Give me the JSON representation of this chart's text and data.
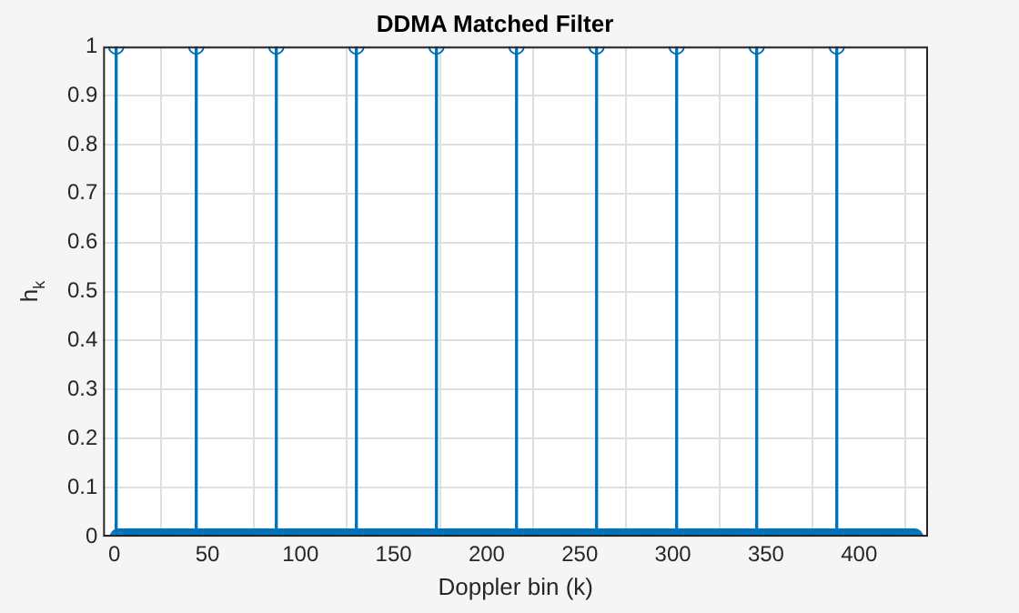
{
  "chart_data": {
    "type": "lollipop",
    "title": "DDMA Matched Filter",
    "xlabel": "Doppler bin (k)",
    "ylabel": "h$_{k}$",
    "x": [
      1,
      2,
      3,
      4,
      5,
      6,
      7,
      8,
      9,
      10,
      11,
      12,
      13,
      14,
      15,
      16,
      17,
      18,
      19,
      20,
      21,
      22,
      23,
      24,
      25,
      26,
      27,
      28,
      29,
      30,
      31,
      32,
      33,
      34,
      35,
      36,
      37,
      38,
      39,
      40,
      41,
      42,
      43,
      44,
      45,
      46,
      47,
      48,
      49,
      50,
      51,
      52,
      53,
      54,
      55,
      56,
      57,
      58,
      59,
      60,
      61,
      62,
      63,
      64,
      65,
      66,
      67,
      68,
      69,
      70,
      71,
      72,
      73,
      74,
      75,
      76,
      77,
      78,
      79,
      80,
      81,
      82,
      83,
      84,
      85,
      86,
      87,
      88,
      89,
      90,
      91,
      92,
      93,
      94,
      95,
      96,
      97,
      98,
      99,
      100,
      101,
      102,
      103,
      104,
      105,
      106,
      107,
      108,
      109,
      110,
      111,
      112,
      113,
      114,
      115,
      116,
      117,
      118,
      119,
      120,
      121,
      122,
      123,
      124,
      125,
      126,
      127,
      128,
      129,
      130,
      131,
      132,
      133,
      134,
      135,
      136,
      137,
      138,
      139,
      140,
      141,
      142,
      143,
      144,
      145,
      146,
      147,
      148,
      149,
      150,
      151,
      152,
      153,
      154,
      155,
      156,
      157,
      158,
      159,
      160,
      161,
      162,
      163,
      164,
      165,
      166,
      167,
      168,
      169,
      170,
      171,
      172,
      173,
      174,
      175,
      176,
      177,
      178,
      179,
      180,
      181,
      182,
      183,
      184,
      185,
      186,
      187,
      188,
      189,
      190,
      191,
      192,
      193,
      194,
      195,
      196,
      197,
      198,
      199,
      200,
      201,
      202,
      203,
      204,
      205,
      206,
      207,
      208,
      209,
      210,
      211,
      212,
      213,
      214,
      215,
      216,
      217,
      218,
      219,
      220,
      221,
      222,
      223,
      224,
      225,
      226,
      227,
      228,
      229,
      230,
      231,
      232,
      233,
      234,
      235,
      236,
      237,
      238,
      239,
      240,
      241,
      242,
      243,
      244,
      245,
      246,
      247,
      248,
      249,
      250,
      251,
      252,
      253,
      254,
      255,
      256,
      257,
      258,
      259,
      260,
      261,
      262,
      263,
      264,
      265,
      266,
      267,
      268,
      269,
      270,
      271,
      272,
      273,
      274,
      275,
      276,
      277,
      278,
      279,
      280,
      281,
      282,
      283,
      284,
      285,
      286,
      287,
      288,
      289,
      290,
      291,
      292,
      293,
      294,
      295,
      296,
      297,
      298,
      299,
      300,
      301,
      302,
      303,
      304,
      305,
      306,
      307,
      308,
      309,
      310,
      311,
      312,
      313,
      314,
      315,
      316,
      317,
      318,
      319,
      320,
      321,
      322,
      323,
      324,
      325,
      326,
      327,
      328,
      329,
      330,
      331,
      332,
      333,
      334,
      335,
      336,
      337,
      338,
      339,
      340,
      341,
      342,
      343,
      344,
      345,
      346,
      347,
      348,
      349,
      350,
      351,
      352,
      353,
      354,
      355,
      356,
      357,
      358,
      359,
      360,
      361,
      362,
      363,
      364,
      365,
      366,
      367,
      368,
      369,
      370,
      371,
      372,
      373,
      374,
      375,
      376,
      377,
      378,
      379,
      380,
      381,
      382,
      383,
      384,
      385,
      386,
      387,
      388,
      389,
      390,
      391,
      392,
      393,
      394,
      395,
      396,
      397,
      398,
      399,
      400,
      401,
      402,
      403,
      404,
      405,
      406,
      407,
      408,
      409,
      410,
      411,
      412,
      413,
      414,
      415,
      416,
      417,
      418,
      419,
      420,
      421,
      422,
      423,
      424,
      425,
      426,
      427,
      428,
      429,
      430
    ],
    "series": [
      {
        "color": "#0072bd",
        "values": [
          1,
          0,
          0,
          0,
          0,
          0,
          0,
          0,
          0,
          0,
          0,
          0,
          0,
          0,
          0,
          0,
          0,
          0,
          0,
          0,
          0,
          0,
          0,
          0,
          0,
          0,
          0,
          0,
          0,
          0,
          0,
          0,
          0,
          0,
          0,
          0,
          0,
          0,
          0,
          0,
          0,
          0,
          0,
          1,
          0,
          0,
          0,
          0,
          0,
          0,
          0,
          0,
          0,
          0,
          0,
          0,
          0,
          0,
          0,
          0,
          0,
          0,
          0,
          0,
          0,
          0,
          0,
          0,
          0,
          0,
          0,
          0,
          0,
          0,
          0,
          0,
          0,
          0,
          0,
          0,
          0,
          0,
          0,
          0,
          0,
          0,
          1,
          0,
          0,
          0,
          0,
          0,
          0,
          0,
          0,
          0,
          0,
          0,
          0,
          0,
          0,
          0,
          0,
          0,
          0,
          0,
          0,
          0,
          0,
          0,
          0,
          0,
          0,
          0,
          0,
          0,
          0,
          0,
          0,
          0,
          0,
          0,
          0,
          0,
          0,
          0,
          0,
          0,
          0,
          1,
          0,
          0,
          0,
          0,
          0,
          0,
          0,
          0,
          0,
          0,
          0,
          0,
          0,
          0,
          0,
          0,
          0,
          0,
          0,
          0,
          0,
          0,
          0,
          0,
          0,
          0,
          0,
          0,
          0,
          0,
          0,
          0,
          0,
          0,
          0,
          0,
          0,
          0,
          0,
          0,
          0,
          0,
          1,
          0,
          0,
          0,
          0,
          0,
          0,
          0,
          0,
          0,
          0,
          0,
          0,
          0,
          0,
          0,
          0,
          0,
          0,
          0,
          0,
          0,
          0,
          0,
          0,
          0,
          0,
          0,
          0,
          0,
          0,
          0,
          0,
          0,
          0,
          0,
          0,
          0,
          0,
          0,
          0,
          0,
          0,
          1,
          0,
          0,
          0,
          0,
          0,
          0,
          0,
          0,
          0,
          0,
          0,
          0,
          0,
          0,
          0,
          0,
          0,
          0,
          0,
          0,
          0,
          0,
          0,
          0,
          0,
          0,
          0,
          0,
          0,
          0,
          0,
          0,
          0,
          0,
          0,
          0,
          0,
          0,
          0,
          0,
          0,
          0,
          1,
          0,
          0,
          0,
          0,
          0,
          0,
          0,
          0,
          0,
          0,
          0,
          0,
          0,
          0,
          0,
          0,
          0,
          0,
          0,
          0,
          0,
          0,
          0,
          0,
          0,
          0,
          0,
          0,
          0,
          0,
          0,
          0,
          0,
          0,
          0,
          0,
          0,
          0,
          0,
          0,
          0,
          0,
          1,
          0,
          0,
          0,
          0,
          0,
          0,
          0,
          0,
          0,
          0,
          0,
          0,
          0,
          0,
          0,
          0,
          0,
          0,
          0,
          0,
          0,
          0,
          0,
          0,
          0,
          0,
          0,
          0,
          0,
          0,
          0,
          0,
          0,
          0,
          0,
          0,
          0,
          0,
          0,
          0,
          0,
          0,
          1,
          0,
          0,
          0,
          0,
          0,
          0,
          0,
          0,
          0,
          0,
          0,
          0,
          0,
          0,
          0,
          0,
          0,
          0,
          0,
          0,
          0,
          0,
          0,
          0,
          0,
          0,
          0,
          0,
          0,
          0,
          0,
          0,
          0,
          0,
          0,
          0,
          0,
          0,
          0,
          0,
          0,
          0,
          1,
          0,
          0,
          0,
          0,
          0,
          0,
          0,
          0,
          0,
          0,
          0,
          0,
          0,
          0,
          0,
          0,
          0,
          0,
          0,
          0,
          0,
          0,
          0,
          0,
          0,
          0,
          0,
          0,
          0,
          0,
          0,
          0,
          0,
          0,
          0,
          0,
          0,
          0,
          0,
          0,
          0,
          0
        ]
      }
    ],
    "xlim": [
      -6,
      437
    ],
    "xticks": [
      0,
      50,
      100,
      150,
      200,
      250,
      300,
      350,
      400
    ],
    "ylim": [
      0,
      1
    ],
    "yticks": [
      0,
      0.1,
      0.2,
      0.3,
      0.4,
      0.5,
      0.6,
      0.7,
      0.8,
      0.9,
      1
    ],
    "grid": true,
    "marker": "circle"
  }
}
